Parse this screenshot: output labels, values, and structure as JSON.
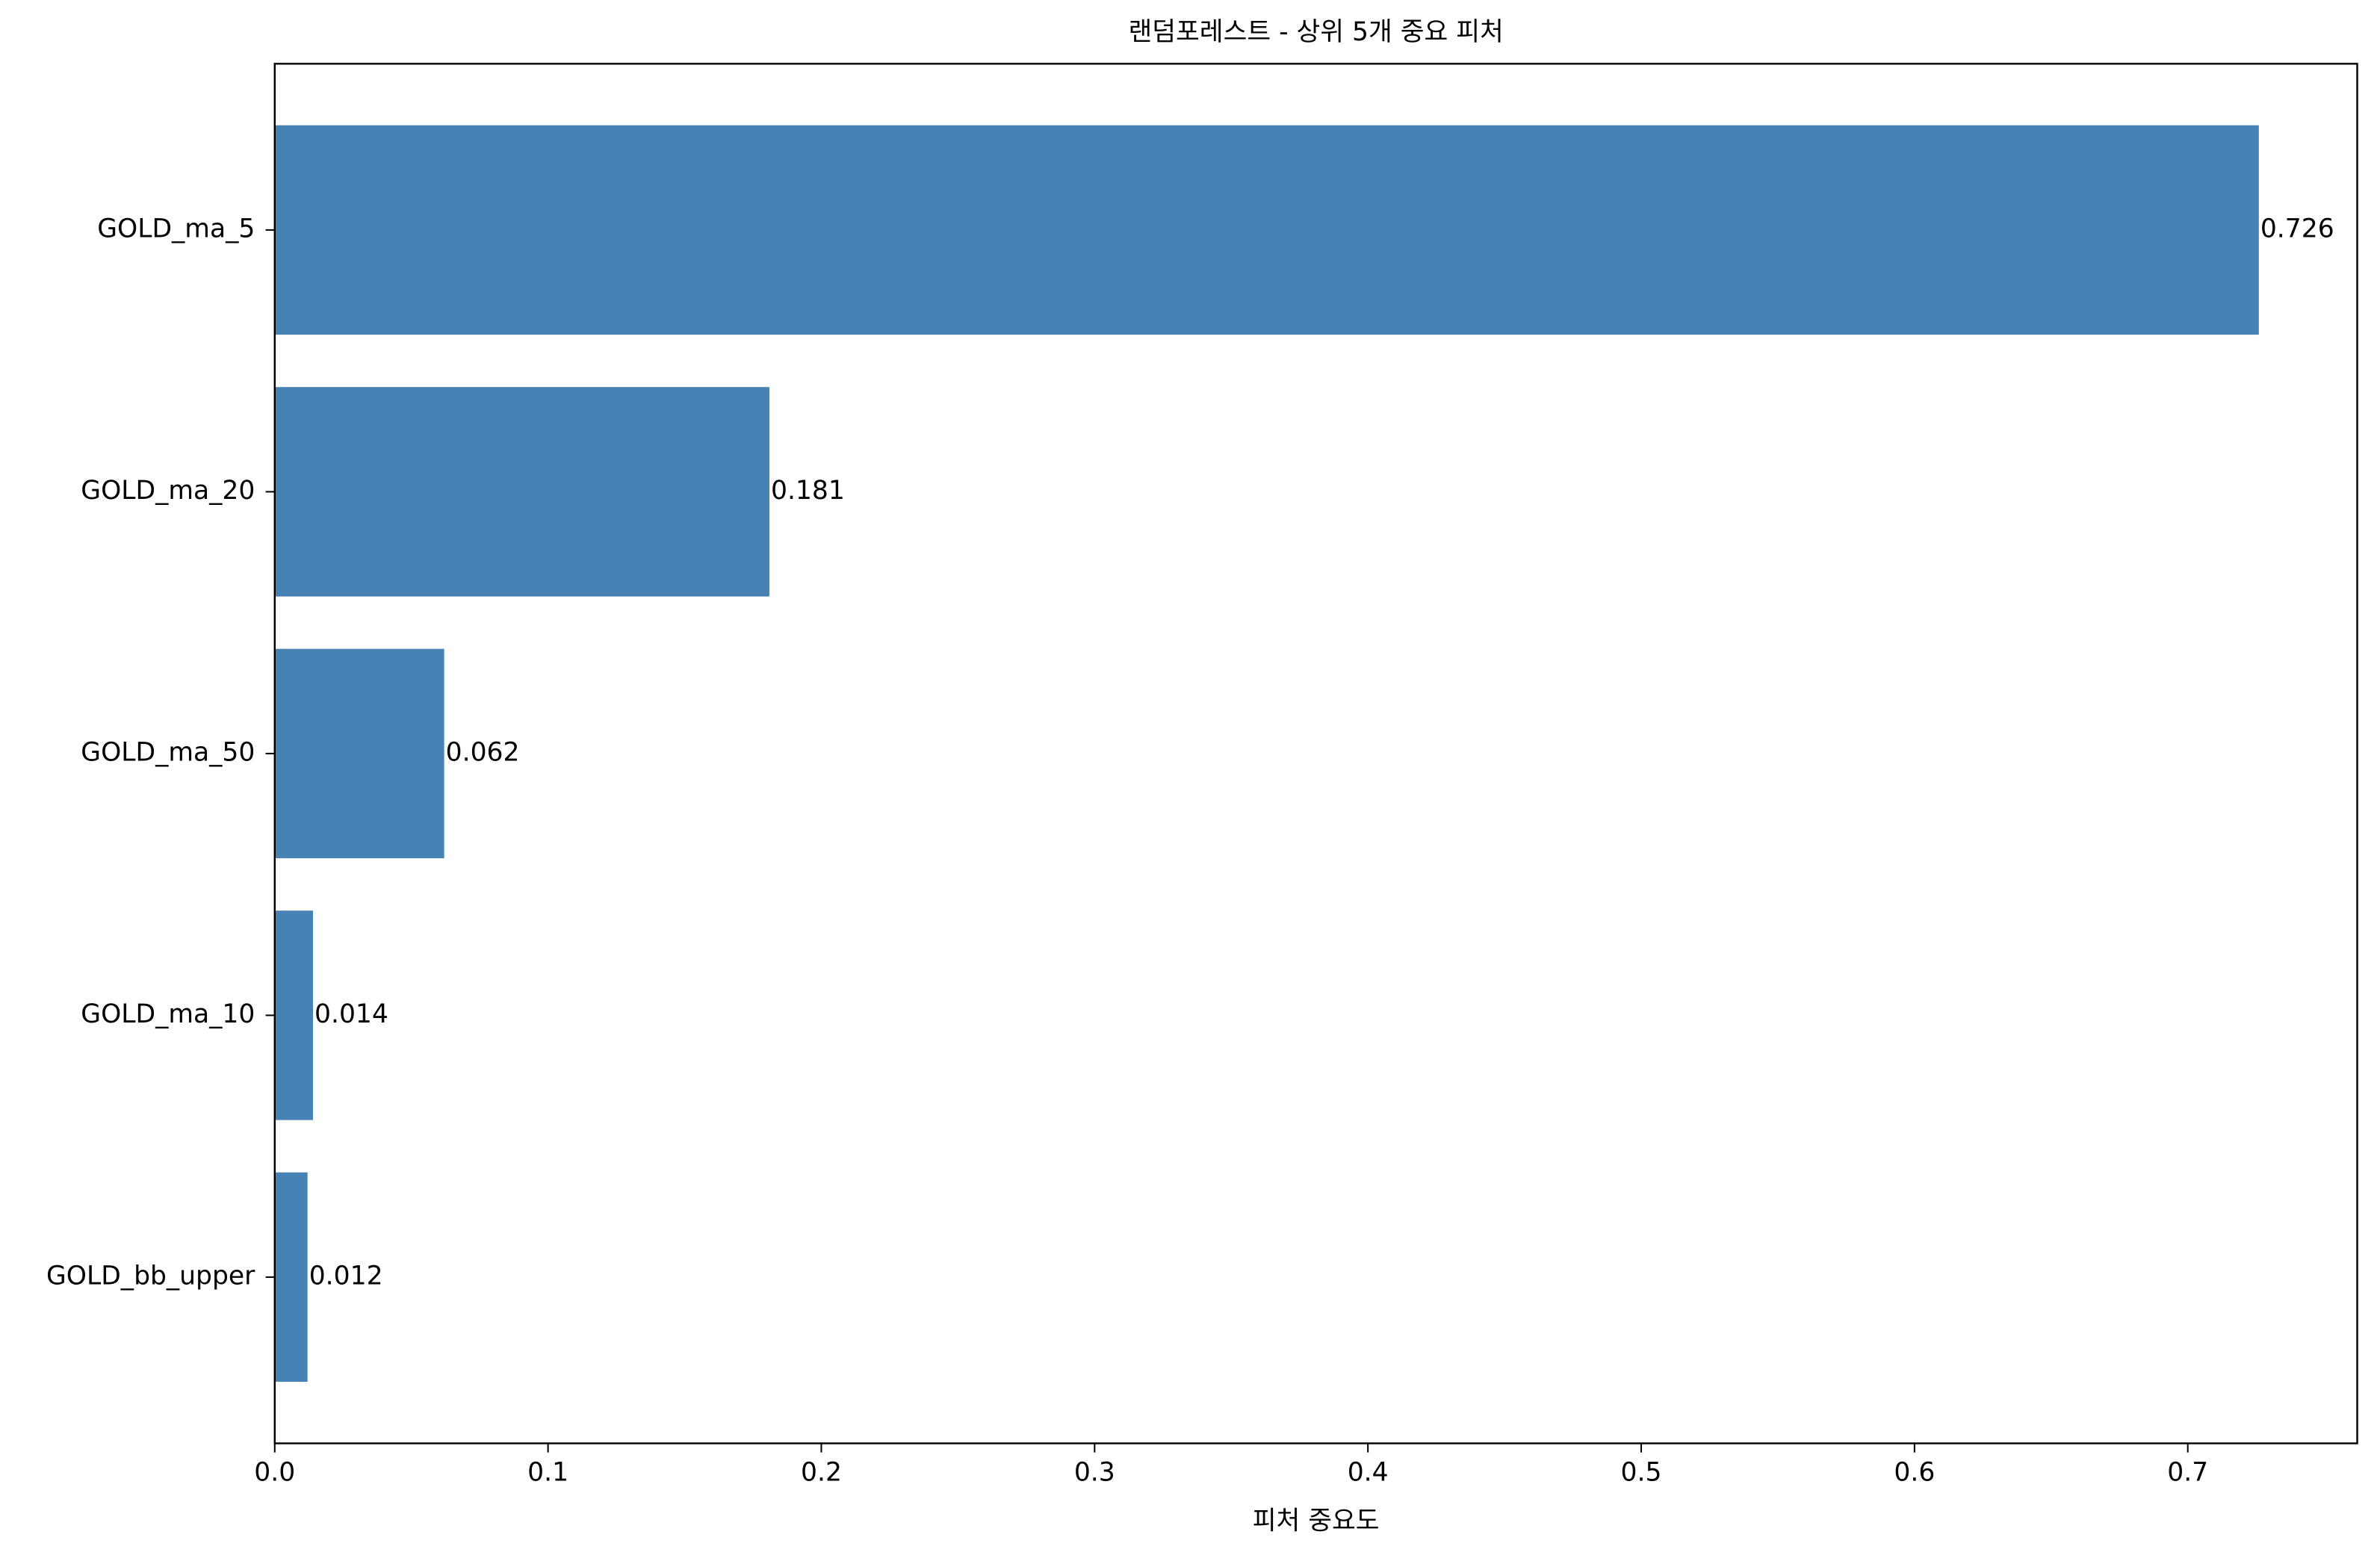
{
  "chart_data": {
    "type": "barh",
    "title": "랜덤포레스트 - 상위 5개 중요 피처",
    "xlabel": "피처 중요도",
    "categories": [
      "GOLD_ma_5",
      "GOLD_ma_20",
      "GOLD_ma_50",
      "GOLD_ma_10",
      "GOLD_bb_upper"
    ],
    "values": [
      0.726,
      0.181,
      0.062,
      0.014,
      0.012
    ],
    "color": "#4682b4",
    "xlim": [
      0,
      0.762
    ],
    "xticks": [
      {
        "value": 0,
        "label": "0.0"
      },
      0.1,
      0.2,
      0.3,
      0.4,
      0.5,
      0.6,
      0.7
    ],
    "grid": false
  }
}
